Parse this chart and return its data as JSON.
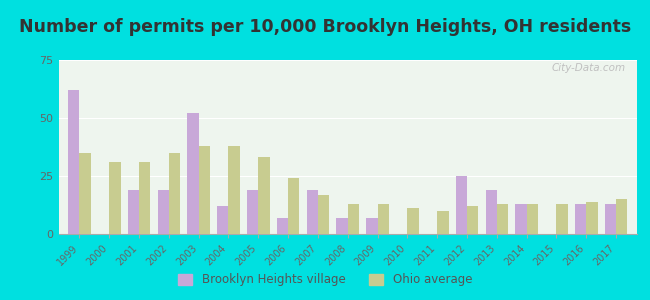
{
  "title": "Number of permits per 10,000 Brooklyn Heights, OH residents",
  "years": [
    1999,
    2000,
    2001,
    2002,
    2003,
    2004,
    2005,
    2006,
    2007,
    2008,
    2009,
    2010,
    2011,
    2012,
    2013,
    2014,
    2015,
    2016,
    2017
  ],
  "brooklyn_heights": [
    62,
    0,
    19,
    19,
    52,
    12,
    19,
    7,
    19,
    7,
    7,
    0,
    0,
    25,
    19,
    13,
    0,
    13,
    13
  ],
  "ohio_avg": [
    35,
    31,
    31,
    35,
    38,
    38,
    33,
    24,
    17,
    13,
    13,
    11,
    10,
    12,
    13,
    13,
    13,
    14,
    15
  ],
  "brooklyn_color": "#c8a8d8",
  "ohio_color": "#c8cc90",
  "background_outer": "#00e0e0",
  "background_plot": "#eef5ee",
  "ylim": [
    0,
    75
  ],
  "yticks": [
    0,
    25,
    50,
    75
  ],
  "bar_width": 0.38,
  "legend_brooklyn": "Brooklyn Heights village",
  "legend_ohio": "Ohio average",
  "title_fontsize": 12.5
}
